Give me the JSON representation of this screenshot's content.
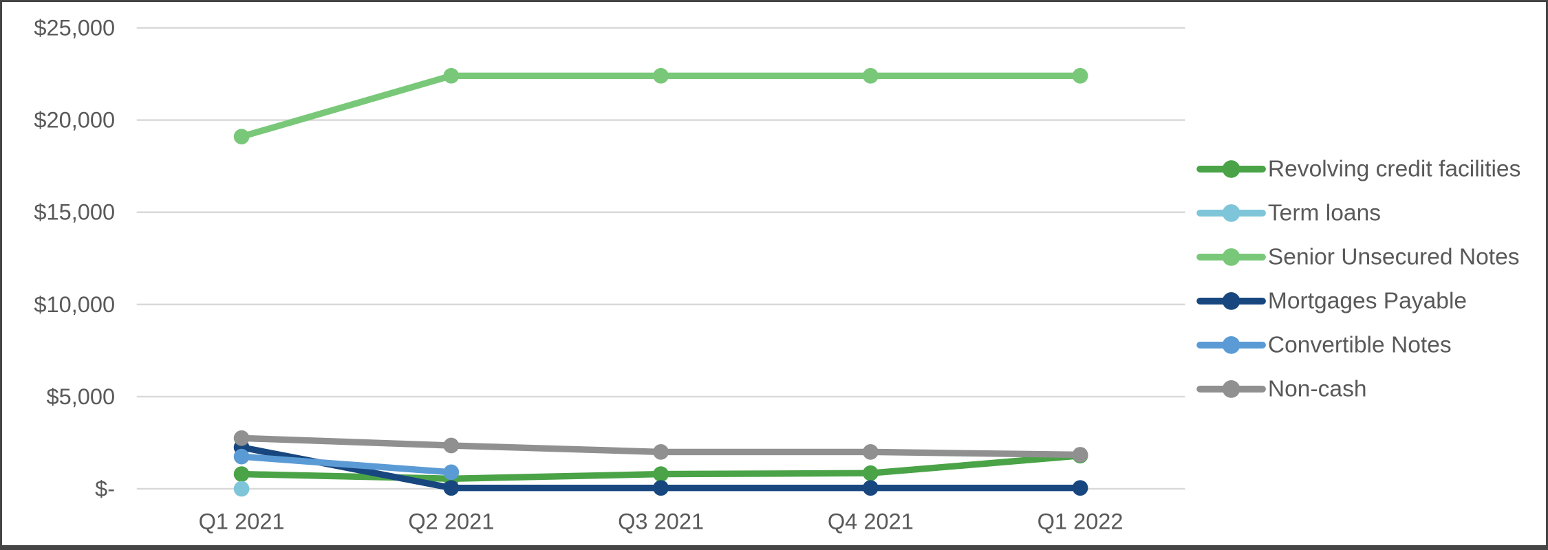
{
  "chart_data": {
    "type": "line",
    "title": "",
    "categories": [
      "Q1 2021",
      "Q2 2021",
      "Q3 2021",
      "Q4 2021",
      "Q1 2022"
    ],
    "y_axis": {
      "tick_values": [
        0,
        5000,
        10000,
        15000,
        20000,
        25000
      ],
      "tick_labels": [
        "$-",
        "$5,000",
        "$10,000",
        "$15,000",
        "$20,000",
        "$25,000"
      ],
      "range": [
        0,
        25000
      ],
      "grid": true
    },
    "x_axis": {
      "label": ""
    },
    "legend_position": "right",
    "series": [
      {
        "name": "Revolving credit facilities",
        "color": "#4AA347",
        "values": [
          800,
          550,
          800,
          850,
          1800
        ]
      },
      {
        "name": "Term loans",
        "color": "#7EC5DA",
        "values": [
          0,
          null,
          null,
          null,
          null
        ]
      },
      {
        "name": "Senior Unsecured Notes",
        "color": "#79C879",
        "values": [
          19100,
          22400,
          22400,
          22400,
          22400
        ]
      },
      {
        "name": "Mortgages Payable",
        "color": "#17477E",
        "values": [
          2250,
          50,
          50,
          50,
          50
        ]
      },
      {
        "name": "Convertible Notes",
        "color": "#5B9BD5",
        "values": [
          1750,
          900,
          null,
          null,
          null
        ]
      },
      {
        "name": "Non-cash",
        "color": "#909090",
        "values": [
          2750,
          2350,
          2000,
          2000,
          1850
        ]
      }
    ],
    "colors": {
      "gridline": "#D9D9D9",
      "text": "#595959",
      "border": "#454545",
      "background": "#FFFFFF"
    }
  }
}
